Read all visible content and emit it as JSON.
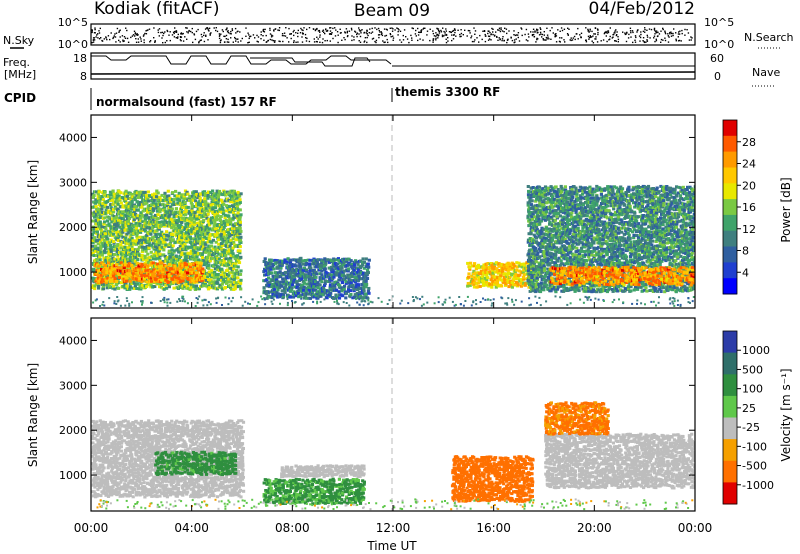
{
  "header": {
    "station": "Kodiak (fitACF)",
    "beam": "Beam 09",
    "date": "04/Feb/2012"
  },
  "summary_panels": {
    "nsky_label": "N.Sky",
    "nsearch_label": "N.Search",
    "freq_label_1": "Freq.",
    "freq_label_2": "[MHz]",
    "nave_label": "Nave",
    "cpid_label": "CPID",
    "count_ticks_left": [
      "10^5",
      "10^0"
    ],
    "count_ticks_right": [
      "10^5",
      "10^0"
    ],
    "freq_ticks": [
      "18",
      "8"
    ],
    "nave_ticks": [
      "60",
      "0"
    ],
    "cpid_segments": [
      {
        "label": "normalsound (fast) 157 RF",
        "start_hour": 0
      },
      {
        "label": "themis 3300 RF",
        "start_hour": 12
      }
    ]
  },
  "colorbars": {
    "power": {
      "label": "Power [dB]",
      "ticks": [
        "28",
        "24",
        "20",
        "16",
        "12",
        "8",
        "4"
      ],
      "colors": [
        "#e00000",
        "#ff5a00",
        "#ff9a00",
        "#ffc800",
        "#e8e800",
        "#7ac943",
        "#3fa36a",
        "#3f7f7f",
        "#2f5fa0",
        "#1f3fd0",
        "#0000ff"
      ]
    },
    "velocity": {
      "label": "Velocity [m s⁻¹]",
      "ticks": [
        "1000",
        "500",
        "100",
        "25",
        "-25",
        "-100",
        "-500",
        "-1000"
      ],
      "colors": [
        "#2c3ca8",
        "#2f6f6a",
        "#2f8f3f",
        "#5fc84a",
        "#bdbdbd",
        "#f5a000",
        "#ff7000",
        "#e00000"
      ]
    }
  },
  "chart_data": [
    {
      "type": "heatmap",
      "quantity": "power",
      "ylabel": "Slant Range [km]",
      "xlabel": "",
      "xlim_hours": [
        0,
        24
      ],
      "ylim": [
        200,
        4500
      ],
      "yticks": [
        1000,
        2000,
        3000,
        4000
      ],
      "regions": [
        {
          "t0": 0.0,
          "t1": 5.9,
          "r0": 600,
          "r1": 2800,
          "level": 14
        },
        {
          "t0": 0.1,
          "t1": 4.4,
          "r0": 750,
          "r1": 1200,
          "level": 24
        },
        {
          "t0": 6.8,
          "t1": 11.0,
          "r0": 400,
          "r1": 1300,
          "level": 8
        },
        {
          "t0": 14.9,
          "t1": 17.5,
          "r0": 650,
          "r1": 1200,
          "level": 20
        },
        {
          "t0": 17.3,
          "t1": 24.0,
          "r0": 550,
          "r1": 2900,
          "level": 10
        },
        {
          "t0": 18.2,
          "t1": 24.0,
          "r0": 700,
          "r1": 1100,
          "level": 24
        }
      ]
    },
    {
      "type": "heatmap",
      "quantity": "velocity",
      "ylabel": "Slant Range [km]",
      "xlabel": "Time UT",
      "xlim_hours": [
        0,
        24
      ],
      "ylim": [
        200,
        4500
      ],
      "yticks": [
        1000,
        2000,
        3000,
        4000
      ],
      "xticks": [
        "00:00",
        "04:00",
        "08:00",
        "12:00",
        "16:00",
        "20:00",
        "00:00"
      ],
      "regions": [
        {
          "t0": 0.0,
          "t1": 6.0,
          "r0": 500,
          "r1": 2200,
          "level": 0
        },
        {
          "t0": 2.5,
          "t1": 5.7,
          "r0": 1000,
          "r1": 1500,
          "level": 200
        },
        {
          "t0": 6.8,
          "t1": 10.8,
          "r0": 350,
          "r1": 900,
          "level": 150
        },
        {
          "t0": 7.5,
          "t1": 10.8,
          "r0": 950,
          "r1": 1200,
          "level": 0
        },
        {
          "t0": 14.3,
          "t1": 17.5,
          "r0": 400,
          "r1": 1400,
          "level": -300
        },
        {
          "t0": 18.0,
          "t1": 24.0,
          "r0": 700,
          "r1": 1900,
          "level": 0
        },
        {
          "t0": 18.0,
          "t1": 20.5,
          "r0": 1900,
          "r1": 2600,
          "level": -150
        }
      ]
    }
  ]
}
